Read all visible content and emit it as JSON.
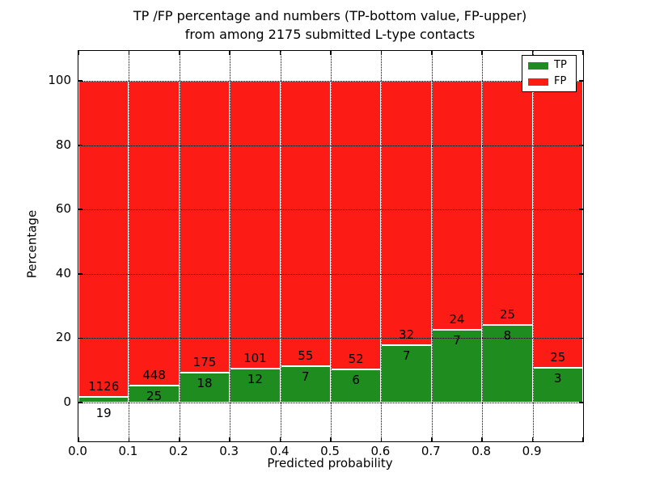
{
  "chart_data": {
    "type": "bar",
    "stacked": true,
    "normalized_to_percent": true,
    "title_line1": "TP /FP percentage and numbers (TP-bottom value, FP-upper)",
    "title_line2": "from among 2175 submitted L-type contacts",
    "xlabel": "Predicted probability",
    "ylabel": "Percentage",
    "total_contacts": 2175,
    "bin_width": 0.1,
    "bin_starts": [
      0.0,
      0.1,
      0.2,
      0.3,
      0.4,
      0.5,
      0.6,
      0.7,
      0.8,
      0.9
    ],
    "categories": [
      "0.0-0.1",
      "0.1-0.2",
      "0.2-0.3",
      "0.3-0.4",
      "0.4-0.5",
      "0.5-0.6",
      "0.6-0.7",
      "0.7-0.8",
      "0.8-0.9",
      "0.9-1.0"
    ],
    "series": [
      {
        "name": "TP",
        "color": "#1e8c1e",
        "counts": [
          19,
          25,
          18,
          12,
          7,
          6,
          7,
          7,
          8,
          3
        ],
        "percent_of_bin": [
          1.66,
          5.29,
          9.33,
          10.62,
          11.29,
          10.34,
          17.95,
          22.58,
          24.24,
          10.71
        ]
      },
      {
        "name": "FP",
        "color": "#fd1c15",
        "counts": [
          1126,
          448,
          175,
          101,
          55,
          52,
          32,
          24,
          25,
          25
        ],
        "percent_of_bin": [
          98.34,
          94.71,
          90.67,
          89.38,
          88.71,
          89.66,
          82.05,
          77.42,
          75.76,
          89.29
        ]
      }
    ],
    "xticks": [
      "0.0",
      "0.1",
      "0.2",
      "0.3",
      "0.4",
      "0.5",
      "0.6",
      "0.7",
      "0.8",
      "0.9"
    ],
    "yticks": [
      "0",
      "20",
      "40",
      "60",
      "80",
      "100"
    ],
    "xlim": [
      0.0,
      1.0
    ],
    "ylim": [
      0,
      100
    ],
    "grid": "dotted, both axes",
    "legend": {
      "position": "upper right",
      "entries": [
        {
          "label": "TP",
          "color": "#1e8c1e"
        },
        {
          "label": "FP",
          "color": "#fd1c15"
        }
      ]
    }
  }
}
